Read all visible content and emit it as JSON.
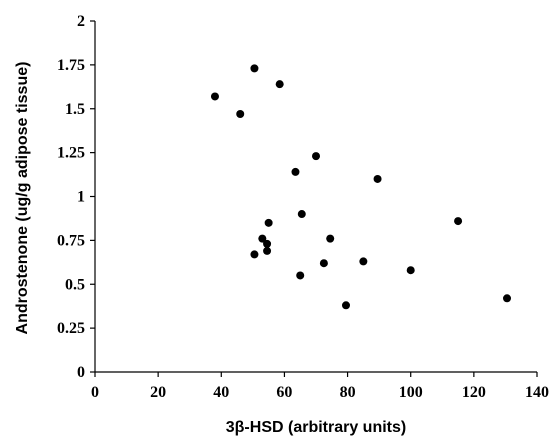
{
  "chart_data": {
    "type": "scatter",
    "title": "",
    "xlabel": "3β-HSD (arbitrary units)",
    "ylabel": "Androstenone (ug/g adipose tissue)",
    "xlim": [
      0,
      140
    ],
    "ylim": [
      0,
      2
    ],
    "grid": false,
    "legend": "none",
    "x_ticks": [
      "0",
      "20",
      "40",
      "60",
      "80",
      "100",
      "120",
      "140"
    ],
    "y_ticks": [
      "0",
      "0.25",
      "0.5",
      "0.75",
      "1",
      "1.25",
      "1.5",
      "1.75",
      "2"
    ],
    "marker_color": "#000000",
    "points": [
      {
        "x": 38,
        "y": 1.57
      },
      {
        "x": 46,
        "y": 1.47
      },
      {
        "x": 50.5,
        "y": 1.73
      },
      {
        "x": 58.5,
        "y": 1.64
      },
      {
        "x": 70,
        "y": 1.23
      },
      {
        "x": 63.5,
        "y": 1.14
      },
      {
        "x": 89.5,
        "y": 1.1
      },
      {
        "x": 65.5,
        "y": 0.9
      },
      {
        "x": 115,
        "y": 0.86
      },
      {
        "x": 55,
        "y": 0.85
      },
      {
        "x": 53,
        "y": 0.76
      },
      {
        "x": 54.5,
        "y": 0.73
      },
      {
        "x": 74.5,
        "y": 0.76
      },
      {
        "x": 54.5,
        "y": 0.69
      },
      {
        "x": 50.5,
        "y": 0.67
      },
      {
        "x": 72.5,
        "y": 0.62
      },
      {
        "x": 85,
        "y": 0.63
      },
      {
        "x": 65,
        "y": 0.55
      },
      {
        "x": 100,
        "y": 0.58
      },
      {
        "x": 79.5,
        "y": 0.38
      },
      {
        "x": 130.5,
        "y": 0.42
      }
    ]
  }
}
